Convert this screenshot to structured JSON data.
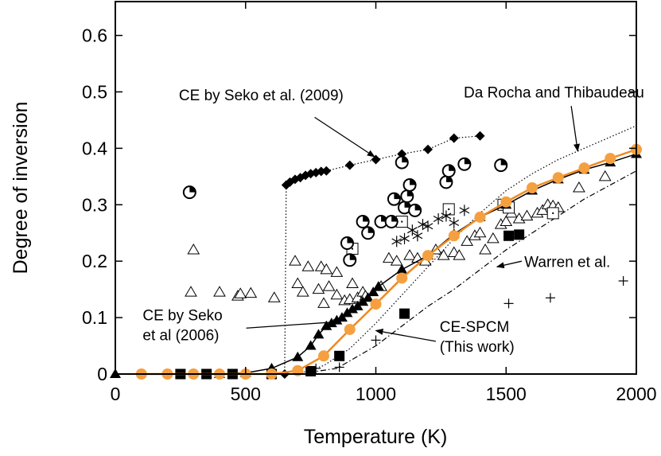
{
  "chart_data": {
    "type": "scatter",
    "xlabel": "Temperature (K)",
    "ylabel": "Degree of inversion",
    "xlim": [
      0,
      2000
    ],
    "ylim": [
      0,
      0.66
    ],
    "xticks": [
      0,
      500,
      1000,
      1500,
      2000
    ],
    "yticks": [
      0,
      0.1,
      0.2,
      0.3,
      0.4,
      0.5,
      0.6
    ],
    "xtick_labels": [
      "0",
      "500",
      "1000",
      "1500",
      "2000"
    ],
    "ytick_labels": [
      "0",
      "0.1",
      "0.2",
      "0.3",
      "0.4",
      "0.5",
      "0.6"
    ],
    "grid": false,
    "colors": {
      "spcm": "#f5a040",
      "spcm_line": "#f08a20",
      "black": "#000000"
    },
    "series": [
      {
        "name": "CE by Seko et al. (2009)",
        "marker": "diamond",
        "line": "dotted",
        "points": [
          [
            650,
            0.0
          ],
          [
            656,
            0.335
          ],
          [
            670,
            0.34
          ],
          [
            690,
            0.345
          ],
          [
            710,
            0.348
          ],
          [
            730,
            0.352
          ],
          [
            750,
            0.355
          ],
          [
            770,
            0.357
          ],
          [
            790,
            0.359
          ],
          [
            810,
            0.36
          ],
          [
            900,
            0.37
          ],
          [
            1000,
            0.38
          ],
          [
            1100,
            0.39
          ],
          [
            1200,
            0.398
          ],
          [
            1300,
            0.418
          ],
          [
            1400,
            0.422
          ]
        ]
      },
      {
        "name": "CE by Seko et al (2006)",
        "marker": "triangle-filled",
        "line": "solid",
        "points": [
          [
            0,
            0.0
          ],
          [
            400,
            0.0
          ],
          [
            500,
            0.002
          ],
          [
            600,
            0.01
          ],
          [
            700,
            0.03
          ],
          [
            750,
            0.05
          ],
          [
            780,
            0.07
          ],
          [
            810,
            0.085
          ],
          [
            830,
            0.09
          ],
          [
            850,
            0.095
          ],
          [
            870,
            0.1
          ],
          [
            890,
            0.108
          ],
          [
            910,
            0.115
          ],
          [
            930,
            0.12
          ],
          [
            950,
            0.128
          ],
          [
            970,
            0.135
          ],
          [
            990,
            0.145
          ],
          [
            1010,
            0.155
          ],
          [
            1100,
            0.185
          ],
          [
            1200,
            0.21
          ],
          [
            1300,
            0.248
          ],
          [
            1400,
            0.278
          ],
          [
            1500,
            0.3
          ],
          [
            1600,
            0.325
          ],
          [
            1700,
            0.345
          ],
          [
            1800,
            0.362
          ],
          [
            1900,
            0.375
          ],
          [
            2000,
            0.39
          ]
        ]
      },
      {
        "name": "CE-SPCM (This work)",
        "marker": "circle-filled",
        "line": "solid-orange",
        "points": [
          [
            100,
            0.0
          ],
          [
            200,
            0.0
          ],
          [
            300,
            0.0
          ],
          [
            400,
            0.0
          ],
          [
            500,
            0.0
          ],
          [
            600,
            0.0
          ],
          [
            700,
            0.006
          ],
          [
            800,
            0.032
          ],
          [
            900,
            0.079
          ],
          [
            1000,
            0.124
          ],
          [
            1100,
            0.17
          ],
          [
            1200,
            0.21
          ],
          [
            1300,
            0.245
          ],
          [
            1400,
            0.278
          ],
          [
            1500,
            0.305
          ],
          [
            1600,
            0.33
          ],
          [
            1700,
            0.348
          ],
          [
            1800,
            0.365
          ],
          [
            1900,
            0.382
          ],
          [
            2000,
            0.398
          ]
        ]
      },
      {
        "name": "Da Rocha and Thibaudeau",
        "marker": "none",
        "line": "dotted",
        "points": [
          [
            700,
            0.0
          ],
          [
            800,
            0.015
          ],
          [
            900,
            0.045
          ],
          [
            1000,
            0.09
          ],
          [
            1100,
            0.14
          ],
          [
            1200,
            0.19
          ],
          [
            1300,
            0.24
          ],
          [
            1400,
            0.285
          ],
          [
            1500,
            0.325
          ],
          [
            1600,
            0.355
          ],
          [
            1700,
            0.38
          ],
          [
            1800,
            0.4
          ],
          [
            1900,
            0.42
          ],
          [
            2000,
            0.44
          ]
        ]
      },
      {
        "name": "Warren et al.",
        "marker": "none",
        "line": "dash-dot",
        "points": [
          [
            700,
            0.0
          ],
          [
            850,
            0.01
          ],
          [
            1000,
            0.05
          ],
          [
            1100,
            0.085
          ],
          [
            1200,
            0.12
          ],
          [
            1300,
            0.15
          ],
          [
            1400,
            0.185
          ],
          [
            1500,
            0.22
          ],
          [
            1600,
            0.25
          ],
          [
            1700,
            0.28
          ],
          [
            1800,
            0.31
          ],
          [
            1900,
            0.335
          ],
          [
            2000,
            0.36
          ]
        ]
      },
      {
        "name": "filled squares",
        "marker": "square-filled",
        "line": "none",
        "points": [
          [
            250,
            0.0
          ],
          [
            350,
            0.0
          ],
          [
            450,
            0.0
          ],
          [
            600,
            0.0
          ],
          [
            750,
            0.005
          ],
          [
            860,
            0.032
          ],
          [
            1110,
            0.107
          ],
          [
            1510,
            0.245
          ],
          [
            1550,
            0.247
          ]
        ]
      },
      {
        "name": "open triangles",
        "marker": "triangle-open",
        "line": "none",
        "points": [
          [
            290,
            0.145
          ],
          [
            300,
            0.22
          ],
          [
            400,
            0.145
          ],
          [
            470,
            0.138
          ],
          [
            480,
            0.142
          ],
          [
            520,
            0.143
          ],
          [
            610,
            0.135
          ],
          [
            690,
            0.2
          ],
          [
            700,
            0.16
          ],
          [
            720,
            0.145
          ],
          [
            740,
            0.19
          ],
          [
            780,
            0.15
          ],
          [
            790,
            0.19
          ],
          [
            800,
            0.125
          ],
          [
            810,
            0.185
          ],
          [
            820,
            0.155
          ],
          [
            850,
            0.14
          ],
          [
            850,
            0.18
          ],
          [
            880,
            0.13
          ],
          [
            900,
            0.132
          ],
          [
            910,
            0.16
          ],
          [
            930,
            0.135
          ],
          [
            950,
            0.145
          ],
          [
            960,
            0.138
          ],
          [
            1020,
            0.155
          ],
          [
            1050,
            0.205
          ],
          [
            1080,
            0.2
          ],
          [
            1130,
            0.21
          ],
          [
            1160,
            0.205
          ],
          [
            1190,
            0.2
          ],
          [
            1230,
            0.22
          ],
          [
            1260,
            0.21
          ],
          [
            1300,
            0.215
          ],
          [
            1320,
            0.21
          ],
          [
            1350,
            0.235
          ],
          [
            1380,
            0.245
          ],
          [
            1400,
            0.25
          ],
          [
            1420,
            0.22
          ],
          [
            1450,
            0.24
          ],
          [
            1480,
            0.265
          ],
          [
            1500,
            0.27
          ],
          [
            1520,
            0.285
          ],
          [
            1550,
            0.275
          ],
          [
            1580,
            0.28
          ],
          [
            1620,
            0.285
          ],
          [
            1640,
            0.29
          ],
          [
            1660,
            0.3
          ],
          [
            1680,
            0.298
          ],
          [
            1700,
            0.295
          ],
          [
            1780,
            0.33
          ],
          [
            1880,
            0.35
          ]
        ]
      },
      {
        "name": "open squares",
        "marker": "square-open",
        "line": "none",
        "points": [
          [
            910,
            0.222
          ],
          [
            1100,
            0.27
          ],
          [
            1280,
            0.292
          ],
          [
            1490,
            0.3
          ],
          [
            1510,
            0.295
          ],
          [
            1680,
            0.285
          ]
        ]
      },
      {
        "name": "half-filled circles",
        "marker": "circle-half",
        "line": "none",
        "points": [
          [
            285,
            0.322
          ],
          [
            890,
            0.232
          ],
          [
            900,
            0.202
          ],
          [
            950,
            0.27
          ],
          [
            970,
            0.25
          ],
          [
            1020,
            0.27
          ],
          [
            1060,
            0.27
          ],
          [
            1070,
            0.31
          ],
          [
            1100,
            0.375
          ],
          [
            1110,
            0.295
          ],
          [
            1120,
            0.315
          ],
          [
            1130,
            0.335
          ],
          [
            1150,
            0.29
          ],
          [
            1270,
            0.34
          ],
          [
            1280,
            0.36
          ],
          [
            1340,
            0.372
          ],
          [
            1480,
            0.37
          ]
        ]
      },
      {
        "name": "asterisks",
        "marker": "asterisk",
        "line": "none",
        "points": [
          [
            1080,
            0.235
          ],
          [
            1110,
            0.24
          ],
          [
            1140,
            0.255
          ],
          [
            1160,
            0.245
          ],
          [
            1180,
            0.265
          ],
          [
            1200,
            0.262
          ],
          [
            1240,
            0.275
          ],
          [
            1270,
            0.28
          ],
          [
            1300,
            0.268
          ],
          [
            1340,
            0.29
          ]
        ]
      },
      {
        "name": "plus",
        "marker": "plus",
        "line": "none",
        "points": [
          [
            770,
            0.01
          ],
          [
            860,
            0.012
          ],
          [
            1000,
            0.06
          ],
          [
            1510,
            0.125
          ],
          [
            1670,
            0.135
          ],
          [
            1950,
            0.165
          ]
        ]
      }
    ],
    "annotations": [
      {
        "lines": [
          "CE by Seko et al. (2009)"
        ],
        "anchor": "middle",
        "text_at": [
          560,
          0.485
        ],
        "arrow_from": [
          765,
          0.455
        ],
        "arrow_to": [
          995,
          0.385
        ]
      },
      {
        "lines": [
          "Da Rocha and Thibaudeau"
        ],
        "anchor": "end",
        "text_at": [
          2030,
          0.49
        ],
        "arrow_from": [
          1750,
          0.475
        ],
        "arrow_to": [
          1775,
          0.395
        ]
      },
      {
        "lines": [
          "Warren et al."
        ],
        "anchor": "start",
        "text_at": [
          1570,
          0.19
        ],
        "arrow_from": [
          1560,
          0.2
        ],
        "arrow_to": [
          1465,
          0.19
        ]
      },
      {
        "lines": [
          "CE by Seko",
          "et al (2006)"
        ],
        "anchor": "start",
        "text_at": [
          105,
          0.095
        ],
        "arrow_from": [
          460,
          0.08
        ],
        "arrow_to": [
          865,
          0.093
        ]
      },
      {
        "lines": [
          "CE-SPCM",
          "(This work)"
        ],
        "anchor": "start",
        "text_at": [
          1245,
          0.075
        ],
        "arrow_from": [
          1230,
          0.058
        ],
        "arrow_to": [
          1000,
          0.077
        ]
      }
    ]
  }
}
